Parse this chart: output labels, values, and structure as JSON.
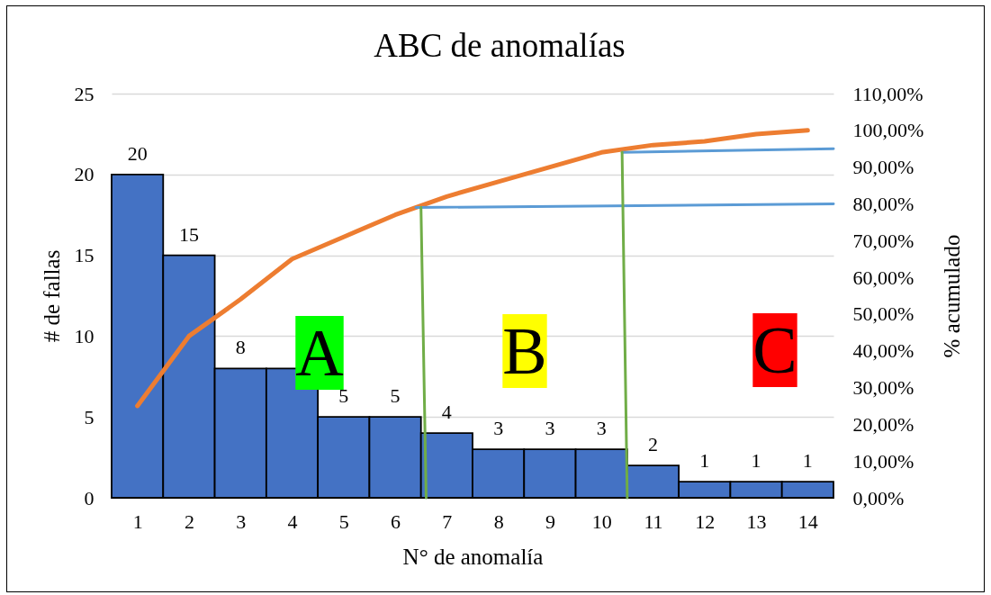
{
  "chart_data": {
    "type": "bar",
    "title": "ABC de anomalías",
    "xlabel": "N° de anomalía",
    "ylabel": "# de fallas",
    "y2label": "% acumulado",
    "x": [
      1,
      2,
      3,
      4,
      5,
      6,
      7,
      8,
      9,
      10,
      11,
      12,
      13,
      14
    ],
    "xlim": [
      0.5,
      14.5
    ],
    "xticks": [
      1,
      2,
      3,
      4,
      5,
      6,
      7,
      8,
      9,
      10,
      11,
      12,
      13,
      14
    ],
    "ylim": [
      0,
      25
    ],
    "yticks": [
      0,
      5,
      10,
      15,
      20,
      25
    ],
    "y2lim": [
      0,
      110
    ],
    "y2ticks": [
      {
        "value": 0,
        "label": "0,00%"
      },
      {
        "value": 10,
        "label": "10,00%"
      },
      {
        "value": 20,
        "label": "20,00%"
      },
      {
        "value": 30,
        "label": "30,00%"
      },
      {
        "value": 40,
        "label": "40,00%"
      },
      {
        "value": 50,
        "label": "50,00%"
      },
      {
        "value": 60,
        "label": "60,00%"
      },
      {
        "value": 70,
        "label": "70,00%"
      },
      {
        "value": 80,
        "label": "80,00%"
      },
      {
        "value": 90,
        "label": "90,00%"
      },
      {
        "value": 100,
        "label": "100,00%"
      },
      {
        "value": 110,
        "label": "110,00%"
      }
    ],
    "grid": "y",
    "series": [
      {
        "color": "#4472c4",
        "values": [
          20,
          15,
          8,
          8,
          5,
          5,
          4,
          3,
          3,
          3,
          2,
          1,
          1,
          1
        ],
        "value_labels": [
          "20",
          "15",
          "8",
          null,
          "5",
          "5",
          "4",
          "3",
          "3",
          "3",
          "2",
          "1",
          "1",
          "1"
        ]
      },
      {
        "type": "line",
        "axis": "y2",
        "color": "#ed7d31",
        "values": [
          25,
          44,
          54,
          65,
          71,
          77,
          82,
          86,
          90,
          94,
          96,
          97,
          99,
          100
        ]
      },
      {
        "type": "line",
        "axis": "y2",
        "color": "#5b9bd5",
        "x": [
          6.4,
          14.5
        ],
        "values": [
          79,
          80
        ]
      },
      {
        "type": "line",
        "axis": "y2",
        "color": "#5b9bd5",
        "x": [
          10.4,
          14.5
        ],
        "values": [
          94,
          95
        ]
      },
      {
        "type": "line",
        "axis": "y2",
        "color": "#70ad47",
        "x": [
          6.5,
          6.6
        ],
        "values": [
          79,
          0
        ]
      },
      {
        "type": "line",
        "axis": "y2",
        "color": "#70ad47",
        "x": [
          10.4,
          10.5
        ],
        "values": [
          94,
          0
        ]
      }
    ],
    "annotations": [
      "A",
      "B",
      "C"
    ]
  }
}
